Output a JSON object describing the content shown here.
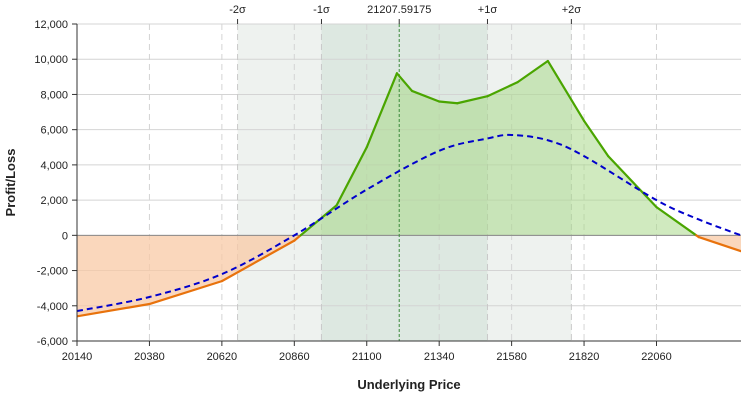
{
  "chart_data": {
    "type": "area",
    "xlabel": "Underlying Price",
    "ylabel": "Profit/Loss",
    "xlim": [
      20140,
      22340
    ],
    "ylim": [
      -6000,
      12000
    ],
    "x_ticks": [
      20140,
      20380,
      20620,
      20860,
      21100,
      21340,
      21580,
      21820,
      22060
    ],
    "x_tick_labels": [
      "20140",
      "20380",
      "20620",
      "20860",
      "21100",
      "21340",
      "21580",
      "21820",
      "22060"
    ],
    "y_ticks": [
      -6000,
      -4000,
      -2000,
      0,
      2000,
      4000,
      6000,
      8000,
      10000,
      12000
    ],
    "y_tick_labels": [
      "-6,000",
      "-4,000",
      "-2,000",
      "0",
      "2,000",
      "4,000",
      "6,000",
      "8,000",
      "10,000",
      "12,000"
    ],
    "grid": true,
    "current_price": 21207.59175,
    "current_price_label": "21207.59175",
    "sigma_bands": [
      {
        "label": "-2σ",
        "value": 20672
      },
      {
        "label": "-1σ",
        "value": 20950
      },
      {
        "label": "+1σ",
        "value": 21500
      },
      {
        "label": "+2σ",
        "value": 21778
      }
    ],
    "series": [
      {
        "line_style": "solid",
        "x": [
          20140,
          20380,
          20620,
          20860,
          21000,
          21100,
          21200,
          21250,
          21340,
          21400,
          21500,
          21600,
          21700,
          21820,
          21900,
          22060,
          22200,
          22340
        ],
        "y": [
          -4600,
          -3900,
          -2600,
          -300,
          1700,
          5000,
          9200,
          8200,
          7600,
          7500,
          7900,
          8700,
          9900,
          6500,
          4500,
          1600,
          -100,
          -900
        ]
      },
      {
        "line_style": "dashed",
        "x": [
          20140,
          20380,
          20620,
          20860,
          21100,
          21340,
          21500,
          21580,
          21700,
          21820,
          22060,
          22200,
          22340
        ],
        "y": [
          -4300,
          -3500,
          -2200,
          0,
          2600,
          4800,
          5500,
          5700,
          5400,
          4500,
          2000,
          900,
          0
        ]
      }
    ],
    "colors": {
      "profit_line": "#4aa500",
      "loss_line": "#e8720c",
      "profit_fill": "#a9d98a",
      "loss_fill": "#f8c9a6",
      "dashed_line": "#0000cc",
      "band_outer": "#eef2ef",
      "band_inner": "#dde8e1",
      "current_line": "#3a8a3a",
      "grid": "#d4d4d4",
      "zero_line": "#888888"
    }
  }
}
